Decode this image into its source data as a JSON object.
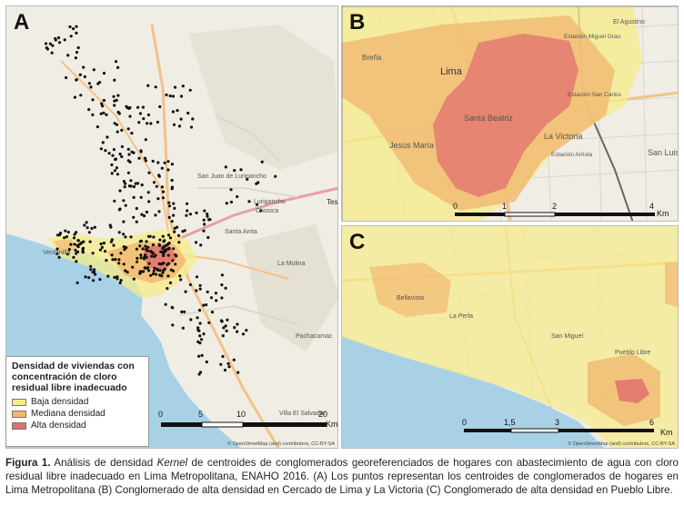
{
  "panels": {
    "a": {
      "letter": "A",
      "scale": {
        "ticks": [
          "0",
          "5",
          "10",
          "20"
        ],
        "unit": "Km"
      },
      "attribution": "© OpenStreetMap (and) contributors, CC-BY-SA",
      "places": [
        "Ventanilla",
        "Lurigancho",
        "Chosica",
        "Santa Anita",
        "La Molina",
        "Pachacamac",
        "Villa El Salvador",
        "San Juan de Lurigancho"
      ],
      "clipped_label": "Tesla",
      "legend": {
        "title": "Densidad de viviendas con concentración de cloro residual libre inadecuado",
        "items": [
          {
            "label": "Baja densidad",
            "color": "#f5ec8a"
          },
          {
            "label": "Mediana densidad",
            "color": "#f2b66e"
          },
          {
            "label": "Alta densidad",
            "color": "#e07070"
          }
        ]
      }
    },
    "b": {
      "letter": "B",
      "scale": {
        "ticks": [
          "0",
          "1",
          "2",
          "4"
        ],
        "unit": "Km"
      },
      "places": [
        "Lima",
        "Breña",
        "Jesús María",
        "Santa Beatriz",
        "La Victoria",
        "Estación Arriola",
        "San Luis",
        "Estación Miguel Grau",
        "Estación San Carlos",
        "El Agustino"
      ]
    },
    "c": {
      "letter": "C",
      "scale": {
        "ticks": [
          "0",
          "1,5",
          "3",
          "6"
        ],
        "unit": "Km"
      },
      "places": [
        "Bellavista",
        "La Perla",
        "San Miguel",
        "Pueblo Libre"
      ],
      "attribution": "© OpenStreetMap (and) contributors, CC-BY-SA"
    }
  },
  "caption": {
    "label": "Figura 1.",
    "part1": " Análisis de densidad ",
    "italic": "Kernel",
    "part2": " de centroides de conglomerados georeferenciados de hogares con abastecimiento de agua con cloro residual libre inadecuado en Lima Metropolitana, ENAHO 2016. (A) Los puntos representan los centroides de conglomerados de hogares en Lima Metropolitana (B) Conglomerado de alta densidad en Cercado de Lima y La Victoria (C) Conglomerado de alta densidad en Pueblo Libre."
  },
  "colors": {
    "sea": "#a9d1e6",
    "land": "#f0ede5",
    "low": "#f5ec8a",
    "medium": "#f2b66e",
    "high": "#e07070",
    "road_major": "#f3c28a",
    "dot": "#111111"
  }
}
